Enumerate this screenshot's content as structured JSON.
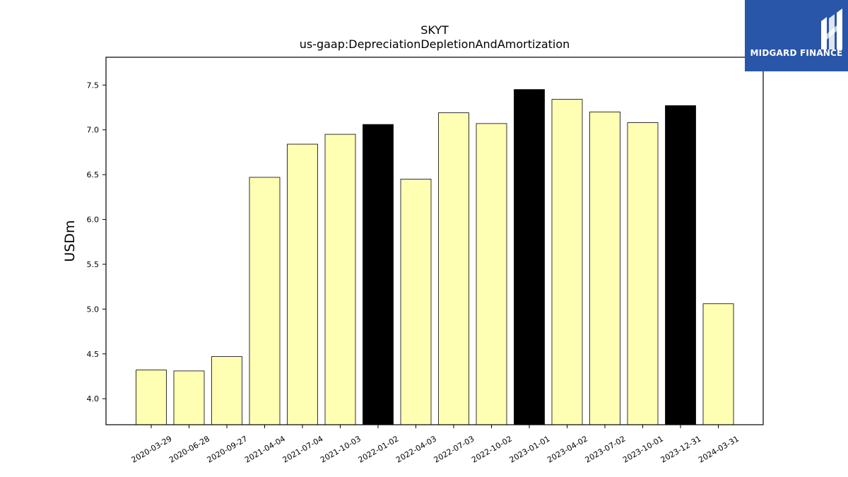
{
  "logo": {
    "text": "MIDGARD FINANCE",
    "color": "#2a56aa"
  },
  "chart_data": {
    "type": "bar",
    "title": "SKYT",
    "subtitle": "us-gaap:DepreciationDepletionAndAmortization",
    "xlabel": "",
    "ylabel": "USDm",
    "ylim": [
      3.71,
      7.81
    ],
    "yticks": [
      4.0,
      4.5,
      5.0,
      5.5,
      6.0,
      6.5,
      7.0,
      7.5
    ],
    "grid": false,
    "categories": [
      "2020-03-29",
      "2020-06-28",
      "2020-09-27",
      "2021-04-04",
      "2021-07-04",
      "2021-10-03",
      "2022-01-02",
      "2022-04-03",
      "2022-07-03",
      "2022-10-02",
      "2023-01-01",
      "2023-04-02",
      "2023-07-02",
      "2023-10-01",
      "2023-12-31",
      "2024-03-31"
    ],
    "values": [
      4.32,
      4.31,
      4.47,
      6.47,
      6.84,
      6.95,
      7.06,
      6.45,
      7.19,
      7.07,
      7.45,
      7.34,
      7.2,
      7.08,
      7.27,
      5.06
    ],
    "colors": {
      "quarter": "#ffffb3",
      "year_end": "#000000",
      "edge": "#000000"
    },
    "year_end": [
      "2022-01-02",
      "2023-01-01",
      "2023-12-31"
    ]
  }
}
